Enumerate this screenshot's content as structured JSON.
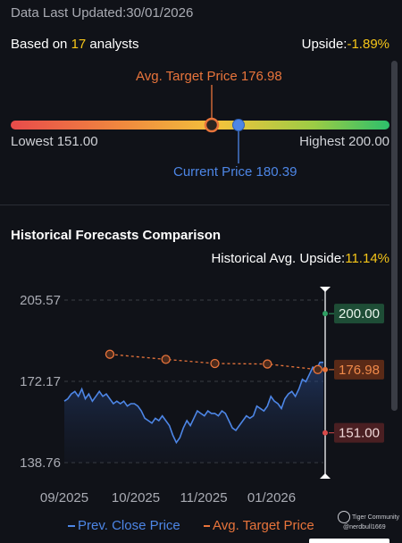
{
  "header": {
    "updated_text": "Data Last Updated:30/01/2026",
    "analysts_prefix": "Based on ",
    "analysts_count": "17",
    "analysts_suffix": " analysts",
    "upside_label": "Upside:",
    "upside_value": "-1.89%"
  },
  "gauge": {
    "avg_target_label": "Avg. Target Price 176.98",
    "current_label": "Current Price 180.39",
    "lowest_label": "Lowest 151.00",
    "highest_label": "Highest 200.00",
    "low": 151.0,
    "high": 200.0,
    "avg_target": 176.98,
    "current": 180.39,
    "colors": {
      "avg": "#e8743b",
      "current": "#4d86e6"
    }
  },
  "history": {
    "title": "Historical Forecasts Comparison",
    "upside_label": "Historical Avg. Upside:",
    "upside_value": "11.14%",
    "legend_prev": "Prev. Close Price",
    "legend_avg": "Avg. Target Price"
  },
  "watermark": {
    "brand": "Tiger Community",
    "user": "@nerdbull1669"
  },
  "chart_data": {
    "type": "line",
    "ylim": [
      138.76,
      205.57
    ],
    "y_ticks": [
      "205.57",
      "172.17",
      "138.76"
    ],
    "x_ticks": [
      "09/2025",
      "10/2025",
      "11/2025",
      "01/2026"
    ],
    "x_tick_positions": [
      0.0,
      1.0,
      2.0,
      3.0
    ],
    "series": [
      {
        "name": "Prev. Close Price",
        "color": "#4d86e6",
        "x": [
          0.0,
          0.05,
          0.1,
          0.15,
          0.2,
          0.25,
          0.3,
          0.35,
          0.4,
          0.45,
          0.5,
          0.55,
          0.6,
          0.65,
          0.7,
          0.75,
          0.8,
          0.85,
          0.9,
          0.95,
          1.0,
          1.05,
          1.1,
          1.15,
          1.2,
          1.25,
          1.3,
          1.35,
          1.4,
          1.45,
          1.5,
          1.55,
          1.6,
          1.65,
          1.7,
          1.75,
          1.8,
          1.85,
          1.9,
          1.95,
          2.0,
          2.05,
          2.1,
          2.15,
          2.2,
          2.25,
          2.3,
          2.35,
          2.4,
          2.45,
          2.5,
          2.55,
          2.6,
          2.65,
          2.7,
          2.75,
          2.8,
          2.85,
          2.9,
          2.95,
          3.0,
          3.05,
          3.1,
          3.15,
          3.2,
          3.25,
          3.3,
          3.35,
          3.4,
          3.45,
          3.5,
          3.55,
          3.6,
          3.65,
          3.7
        ],
        "values": [
          164,
          165,
          167,
          168,
          166,
          169,
          165,
          167,
          164,
          166,
          168,
          166,
          167,
          165,
          163,
          164,
          163,
          164,
          162,
          163,
          163,
          162,
          160,
          157,
          156,
          155,
          157,
          156,
          158,
          156,
          154,
          150,
          147,
          149,
          153,
          156,
          154,
          157,
          160,
          159,
          158,
          160,
          159,
          159,
          158,
          160,
          159,
          156,
          153,
          152,
          154,
          156,
          158,
          157,
          158,
          162,
          161,
          160,
          162,
          166,
          164,
          163,
          161,
          165,
          167,
          168,
          166,
          169,
          173,
          172,
          175,
          178,
          177,
          180,
          180
        ]
      },
      {
        "name": "Avg. Target Price",
        "color": "#e8743b",
        "x": [
          0.65,
          1.45,
          2.15,
          2.9,
          3.62
        ],
        "values": [
          183.3,
          181.2,
          179.5,
          179.3,
          177.0
        ]
      }
    ],
    "markers": [
      {
        "label": "200.00",
        "value": 200.0,
        "color": "#2f9e63",
        "bg": "#1e4d36"
      },
      {
        "label": "176.98",
        "value": 176.98,
        "color": "#e8743b",
        "bg": "#5a2a17"
      },
      {
        "label": "151.00",
        "value": 151.0,
        "color": "#d84a4a",
        "bg": "#4a1f22"
      }
    ]
  }
}
